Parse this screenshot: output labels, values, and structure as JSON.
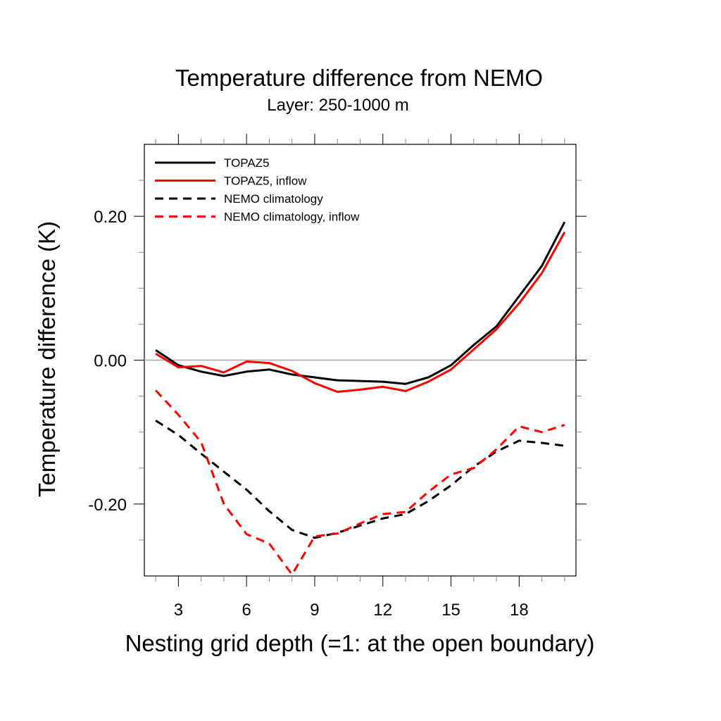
{
  "chart_data": {
    "type": "line",
    "title": "Temperature difference from NEMO",
    "subtitle": "Layer: 250-1000 m",
    "xlabel": "Nesting grid depth (=1: at the open boundary)",
    "ylabel": "Temperature difference (K)",
    "xlim": [
      1.5,
      20.5
    ],
    "ylim": [
      -0.3,
      0.3
    ],
    "x_ticks": [
      3,
      6,
      9,
      12,
      15,
      18
    ],
    "x_tick_labels": [
      "3",
      "6",
      "9",
      "12",
      "15",
      "18"
    ],
    "x_minor_ticks": [
      2,
      4,
      5,
      7,
      8,
      10,
      11,
      13,
      14,
      16,
      17,
      19,
      20
    ],
    "y_ticks": [
      -0.2,
      0.0,
      0.2
    ],
    "y_tick_labels": [
      "-0.20",
      "0.00",
      "0.20"
    ],
    "y_minor_ticks": [
      -0.25,
      -0.15,
      -0.1,
      -0.05,
      0.05,
      0.1,
      0.15,
      0.25
    ],
    "zero_reference_line": true,
    "grid": false,
    "legend_position": "top-left",
    "x": [
      2,
      3,
      4,
      5,
      6,
      7,
      8,
      9,
      10,
      11,
      12,
      13,
      14,
      15,
      16,
      17,
      18,
      19,
      20
    ],
    "series": [
      {
        "name": "TOPAZ5",
        "color": "#000000",
        "dash": "solid",
        "values": [
          0.014,
          -0.007,
          -0.016,
          -0.022,
          -0.016,
          -0.013,
          -0.02,
          -0.024,
          -0.028,
          -0.029,
          -0.03,
          -0.033,
          -0.024,
          -0.007,
          0.021,
          0.047,
          0.089,
          0.131,
          0.192
        ]
      },
      {
        "name": "TOPAZ5, inflow",
        "color": "#ff0000",
        "dash": "solid",
        "values": [
          0.009,
          -0.01,
          -0.008,
          -0.017,
          -0.002,
          -0.004,
          -0.015,
          -0.032,
          -0.044,
          -0.041,
          -0.037,
          -0.043,
          -0.03,
          -0.013,
          0.015,
          0.043,
          0.079,
          0.121,
          0.178
        ]
      },
      {
        "name": "NEMO climatology",
        "color": "#000000",
        "dash": "dashed",
        "values": [
          -0.084,
          -0.104,
          -0.13,
          -0.155,
          -0.18,
          -0.21,
          -0.236,
          -0.247,
          -0.24,
          -0.23,
          -0.22,
          -0.214,
          -0.196,
          -0.174,
          -0.148,
          -0.127,
          -0.112,
          -0.115,
          -0.119
        ]
      },
      {
        "name": "NEMO climatology, inflow",
        "color": "#ff0000",
        "dash": "dashed",
        "values": [
          -0.042,
          -0.076,
          -0.114,
          -0.2,
          -0.242,
          -0.255,
          -0.298,
          -0.245,
          -0.241,
          -0.227,
          -0.214,
          -0.211,
          -0.183,
          -0.159,
          -0.15,
          -0.124,
          -0.092,
          -0.1,
          -0.09
        ]
      }
    ]
  }
}
